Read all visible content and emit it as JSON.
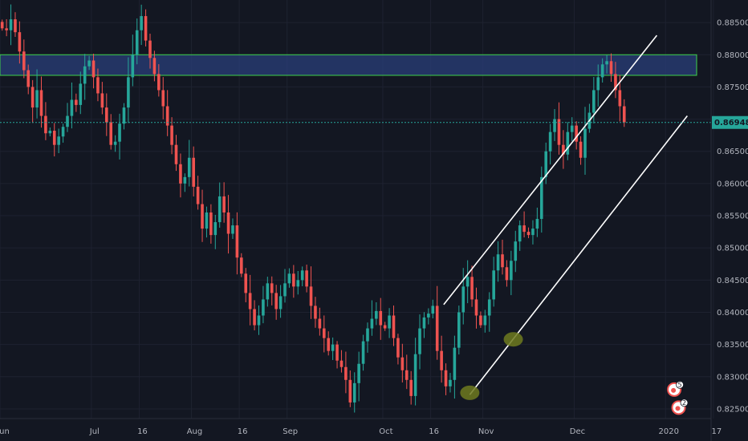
{
  "colors": {
    "background": "#131722",
    "grid": "#1e2230",
    "axis_text": "#b2b5be",
    "up": "#26a69a",
    "down": "#ef5350",
    "zone_fill": "#2a3f7a",
    "zone_border": "#3fd34a",
    "channel": "#ffffff",
    "last_price_line": "#26a69a",
    "marker": "#6f7a1e",
    "event_badge": "#ef5350"
  },
  "chart_data": {
    "type": "candlestick",
    "ylim": [
      0.8235,
      0.8885
    ],
    "y_ticks": [
      "0.88500",
      "0.88000",
      "0.87500",
      "0.87000",
      "0.86500",
      "0.86000",
      "0.85500",
      "0.85000",
      "0.84500",
      "0.84000",
      "0.83500",
      "0.83000",
      "0.82500"
    ],
    "y_tick_values": [
      0.885,
      0.88,
      0.875,
      0.87,
      0.865,
      0.86,
      0.855,
      0.85,
      0.845,
      0.84,
      0.835,
      0.83,
      0.825
    ],
    "x_ticks": [
      {
        "label": "Jun",
        "index": 0
      },
      {
        "label": "Jul",
        "index": 21
      },
      {
        "label": "16",
        "index": 32
      },
      {
        "label": "Aug",
        "index": 44
      },
      {
        "label": "16",
        "index": 55
      },
      {
        "label": "Sep",
        "index": 66
      },
      {
        "label": "Oct",
        "index": 88
      },
      {
        "label": "16",
        "index": 99
      },
      {
        "label": "Nov",
        "index": 111
      },
      {
        "label": "Dec",
        "index": 132
      },
      {
        "label": "2020",
        "index": 153
      },
      {
        "label": "17",
        "index": 164
      }
    ],
    "last_price": "0.86948",
    "last_price_value": 0.86948,
    "resistance_zone": {
      "low": 0.8768,
      "high": 0.88
    },
    "channel_lines": [
      {
        "x1": 102,
        "y1": 0.8412,
        "x2": 151,
        "y2": 0.883
      },
      {
        "x1": 108,
        "y1": 0.8272,
        "x2": 158,
        "y2": 0.8705
      }
    ],
    "markers": [
      {
        "index": 108,
        "value": 0.8275
      },
      {
        "index": 118,
        "value": 0.8358
      }
    ],
    "events": [
      {
        "index": 155,
        "value": 0.828,
        "label": "5"
      },
      {
        "index": 156,
        "value": 0.8252,
        "label": "2"
      }
    ],
    "closes": [
      0.8841,
      0.8838,
      0.8855,
      0.8835,
      0.8805,
      0.8776,
      0.875,
      0.8718,
      0.8745,
      0.8705,
      0.8678,
      0.8682,
      0.866,
      0.8673,
      0.8688,
      0.8705,
      0.873,
      0.8722,
      0.8755,
      0.8782,
      0.8791,
      0.8765,
      0.874,
      0.8718,
      0.8695,
      0.866,
      0.8665,
      0.8693,
      0.8718,
      0.8765,
      0.88,
      0.8838,
      0.886,
      0.8822,
      0.8795,
      0.877,
      0.8745,
      0.872,
      0.869,
      0.866,
      0.863,
      0.86,
      0.861,
      0.864,
      0.8595,
      0.8568,
      0.853,
      0.8555,
      0.852,
      0.854,
      0.858,
      0.8555,
      0.8522,
      0.8535,
      0.8485,
      0.846,
      0.843,
      0.8405,
      0.838,
      0.8395,
      0.842,
      0.8445,
      0.843,
      0.8405,
      0.8425,
      0.8445,
      0.846,
      0.844,
      0.845,
      0.8465,
      0.844,
      0.841,
      0.839,
      0.8375,
      0.836,
      0.834,
      0.835,
      0.8325,
      0.8315,
      0.8295,
      0.826,
      0.829,
      0.832,
      0.8355,
      0.8375,
      0.839,
      0.8402,
      0.838,
      0.8375,
      0.8395,
      0.836,
      0.833,
      0.831,
      0.8295,
      0.827,
      0.8335,
      0.8375,
      0.8392,
      0.8398,
      0.841,
      0.834,
      0.831,
      0.8285,
      0.8295,
      0.8345,
      0.84,
      0.844,
      0.8455,
      0.842,
      0.8395,
      0.838,
      0.8395,
      0.842,
      0.8465,
      0.849,
      0.847,
      0.845,
      0.848,
      0.851,
      0.8535,
      0.8525,
      0.852,
      0.853,
      0.8545,
      0.861,
      0.865,
      0.868,
      0.87,
      0.866,
      0.8645,
      0.868,
      0.869,
      0.8665,
      0.864,
      0.8685,
      0.871,
      0.8745,
      0.8765,
      0.8785,
      0.879,
      0.877,
      0.8745,
      0.872,
      0.8695
    ],
    "title": "",
    "xlabel": "",
    "ylabel": ""
  }
}
